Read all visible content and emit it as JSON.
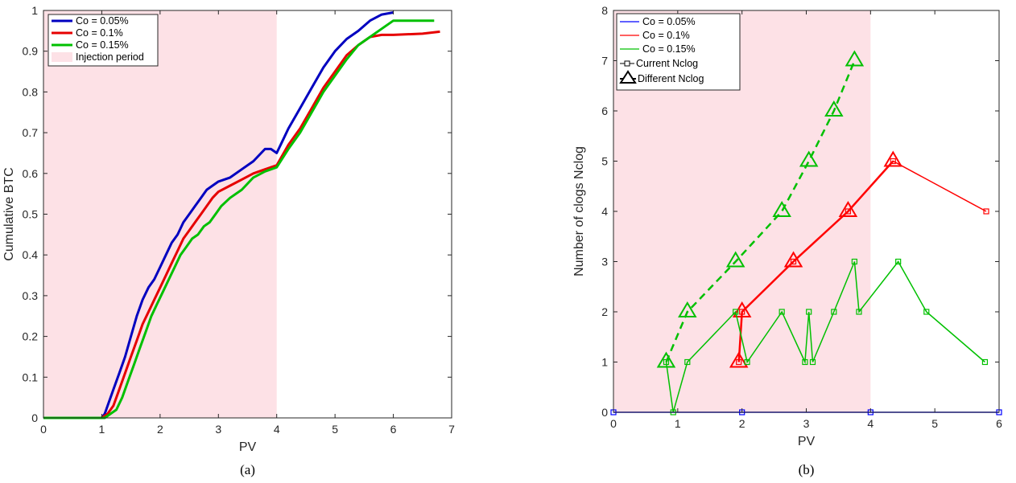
{
  "colors": {
    "blue": "#0000c0",
    "red": "#e60000",
    "green": "#00b800",
    "injection": "#fde1e6"
  },
  "chart_data": [
    {
      "type": "line",
      "caption": "(a)",
      "xlabel": "PV",
      "ylabel": "Cumulative BTC",
      "xlim": [
        0,
        7
      ],
      "ylim": [
        0,
        1
      ],
      "xticks": [
        0,
        1,
        2,
        3,
        4,
        5,
        6,
        7
      ],
      "yticks": [
        0,
        0.1,
        0.2,
        0.3,
        0.4,
        0.5,
        0.6,
        0.7,
        0.8,
        0.9,
        1
      ],
      "grid": false,
      "legend_position": "top-left",
      "shaded_region": {
        "label": "Injection period",
        "x": [
          0,
          4
        ]
      },
      "series": [
        {
          "name": "Co = 0.05%",
          "color": "#0000c0",
          "x": [
            0,
            1.0,
            1.05,
            1.1,
            1.2,
            1.3,
            1.4,
            1.5,
            1.6,
            1.7,
            1.8,
            1.9,
            2.0,
            2.1,
            2.2,
            2.3,
            2.4,
            2.5,
            2.6,
            2.7,
            2.8,
            2.9,
            3.0,
            3.2,
            3.4,
            3.6,
            3.8,
            3.9,
            4.0,
            4.1,
            4.2,
            4.4,
            4.6,
            4.8,
            5.0,
            5.2,
            5.4,
            5.6,
            5.8,
            6.0
          ],
          "y": [
            0,
            0,
            0.01,
            0.03,
            0.07,
            0.11,
            0.15,
            0.2,
            0.25,
            0.29,
            0.32,
            0.34,
            0.37,
            0.4,
            0.43,
            0.45,
            0.48,
            0.5,
            0.52,
            0.54,
            0.56,
            0.57,
            0.58,
            0.59,
            0.61,
            0.63,
            0.66,
            0.66,
            0.65,
            0.68,
            0.71,
            0.76,
            0.81,
            0.86,
            0.9,
            0.93,
            0.95,
            0.975,
            0.99,
            0.995
          ]
        },
        {
          "name": "Co = 0.1%",
          "color": "#e60000",
          "x": [
            0,
            1.0,
            1.1,
            1.2,
            1.3,
            1.4,
            1.5,
            1.6,
            1.7,
            1.8,
            1.9,
            2.0,
            2.1,
            2.2,
            2.3,
            2.4,
            2.5,
            2.6,
            2.7,
            2.8,
            2.9,
            3.0,
            3.2,
            3.4,
            3.6,
            3.8,
            4.0,
            4.2,
            4.4,
            4.6,
            4.8,
            5.0,
            5.2,
            5.4,
            5.6,
            5.8,
            6.0,
            6.5,
            6.8
          ],
          "y": [
            0,
            0,
            0.01,
            0.03,
            0.07,
            0.11,
            0.15,
            0.19,
            0.23,
            0.26,
            0.29,
            0.32,
            0.35,
            0.38,
            0.41,
            0.44,
            0.46,
            0.48,
            0.5,
            0.52,
            0.54,
            0.555,
            0.57,
            0.585,
            0.6,
            0.61,
            0.62,
            0.67,
            0.71,
            0.76,
            0.81,
            0.85,
            0.89,
            0.915,
            0.935,
            0.94,
            0.94,
            0.943,
            0.948
          ]
        },
        {
          "name": "Co = 0.15%",
          "color": "#00c000",
          "x": [
            0,
            1.05,
            1.15,
            1.25,
            1.35,
            1.45,
            1.55,
            1.65,
            1.75,
            1.85,
            1.95,
            2.05,
            2.15,
            2.25,
            2.35,
            2.45,
            2.55,
            2.65,
            2.75,
            2.85,
            2.95,
            3.05,
            3.2,
            3.4,
            3.6,
            3.8,
            4.0,
            4.2,
            4.4,
            4.6,
            4.8,
            5.0,
            5.2,
            5.4,
            5.6,
            5.8,
            6.0,
            6.4,
            6.7
          ],
          "y": [
            0,
            0,
            0.01,
            0.02,
            0.05,
            0.09,
            0.13,
            0.17,
            0.21,
            0.25,
            0.28,
            0.31,
            0.34,
            0.37,
            0.4,
            0.42,
            0.44,
            0.45,
            0.47,
            0.48,
            0.5,
            0.52,
            0.54,
            0.56,
            0.59,
            0.605,
            0.615,
            0.66,
            0.7,
            0.75,
            0.8,
            0.84,
            0.88,
            0.915,
            0.935,
            0.955,
            0.975,
            0.975,
            0.975
          ]
        }
      ]
    },
    {
      "type": "line",
      "caption": "(b)",
      "xlabel": "PV",
      "ylabel": "Number of clogs Nclog",
      "xlim": [
        0,
        6
      ],
      "ylim": [
        0,
        8
      ],
      "xticks": [
        0,
        1,
        2,
        3,
        4,
        5,
        6
      ],
      "yticks": [
        0,
        1,
        2,
        3,
        4,
        5,
        6,
        7,
        8
      ],
      "grid": false,
      "legend_position": "top-left",
      "shaded_region": {
        "x": [
          0,
          4
        ]
      },
      "legend": [
        "Co = 0.05%",
        "Co = 0.1%",
        "Co = 0.15%",
        "Current Nclog",
        "Different Nclog"
      ],
      "series": [
        {
          "name": "Co = 0.05%",
          "color": "#0000ff",
          "style": "solid",
          "marker": "square",
          "x": [
            0,
            2.0,
            4.0,
            6.0
          ],
          "y": [
            0,
            0,
            0,
            0
          ]
        },
        {
          "name": "Co = 0.1%",
          "color": "#ff0000",
          "style": "solid",
          "marker": "square",
          "x": [
            1.95,
            2.0,
            2.8,
            3.65,
            4.35,
            5.8
          ],
          "y": [
            1,
            2,
            3,
            4,
            5,
            4
          ]
        },
        {
          "name": "Co = 0.1%",
          "color": "#ff0000",
          "style": "solid",
          "marker": "triangle",
          "x": [
            1.95,
            2.0,
            2.8,
            3.65,
            4.35
          ],
          "y": [
            1,
            2,
            3,
            4,
            5
          ]
        },
        {
          "name": "Co = 0.15%",
          "color": "#00c000",
          "style": "solid",
          "marker": "square",
          "x": [
            0.82,
            0.93,
            1.15,
            1.9,
            2.08,
            2.62,
            2.98,
            3.04,
            3.1,
            3.43,
            3.75,
            3.82,
            4.43,
            4.87,
            5.78
          ],
          "y": [
            1,
            0,
            1,
            2,
            1,
            2,
            1,
            2,
            1,
            2,
            3,
            2,
            3,
            2,
            1
          ]
        },
        {
          "name": "Co = 0.15%",
          "color": "#00c000",
          "style": "dashed",
          "marker": "triangle",
          "x": [
            0.82,
            1.15,
            1.9,
            2.62,
            3.04,
            3.43,
            3.75
          ],
          "y": [
            1,
            2,
            3,
            4,
            5,
            6,
            7
          ]
        }
      ]
    }
  ]
}
